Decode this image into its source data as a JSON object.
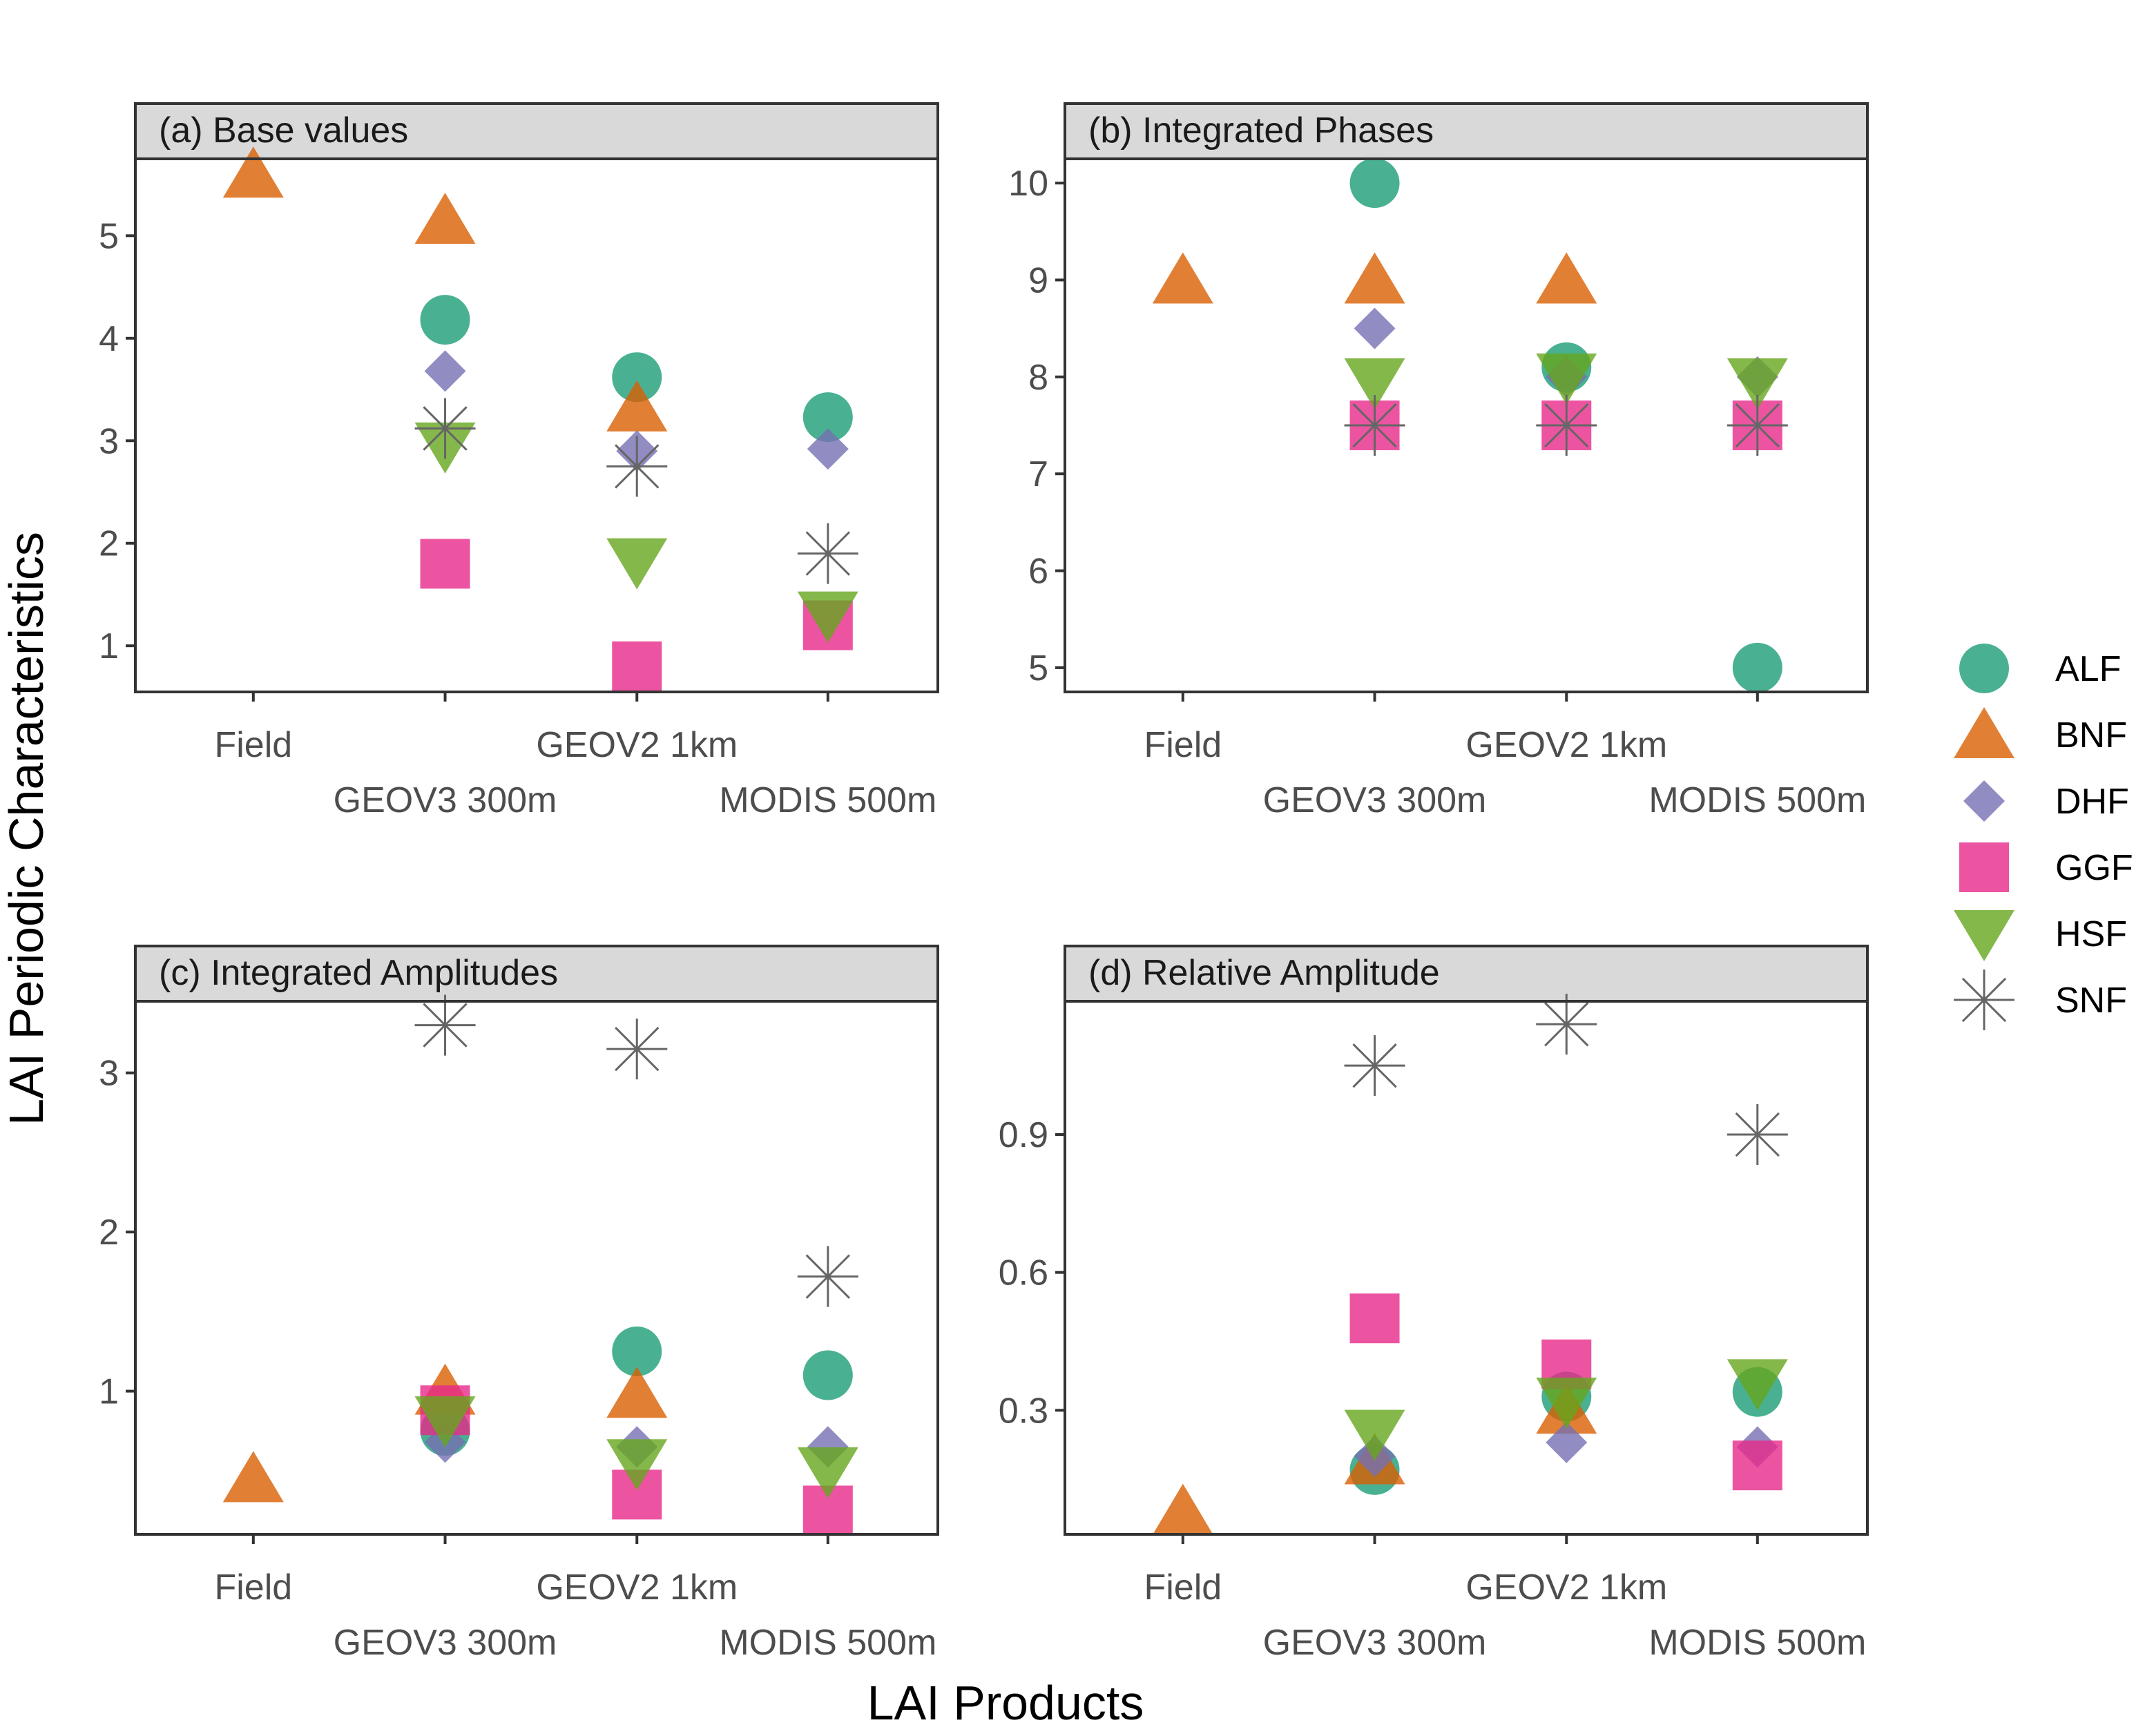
{
  "figure": {
    "ylabel": "LAI Periodic Characteristics",
    "xlabel": "LAI Products"
  },
  "legend": {
    "placement": "right",
    "items": [
      {
        "label": "ALF",
        "shape": "circle",
        "color": "#1b9e77"
      },
      {
        "label": "BNF",
        "shape": "triangle-up",
        "color": "#d95f02"
      },
      {
        "label": "DHF",
        "shape": "diamond",
        "color": "#7570b3"
      },
      {
        "label": "GGF",
        "shape": "square",
        "color": "#e7298a"
      },
      {
        "label": "HSF",
        "shape": "triangle-down",
        "color": "#66a61e"
      },
      {
        "label": "SNF",
        "shape": "asterisk",
        "color": "#666666"
      }
    ]
  },
  "chart_data": [
    {
      "type": "scatter",
      "title": "(a) Base values",
      "categories": [
        "Field",
        "GEOV3 300m",
        "GEOV2 1km",
        "MODIS 500m"
      ],
      "ylim": [
        0.55,
        5.75
      ],
      "yticks": [
        1,
        2,
        3,
        4,
        5
      ],
      "ytick_labels": [
        "1",
        "2",
        "3",
        "4",
        "5"
      ],
      "grid": false,
      "series": [
        {
          "name": "ALF",
          "values": [
            null,
            4.18,
            3.62,
            3.23
          ]
        },
        {
          "name": "BNF",
          "values": [
            5.6,
            5.15,
            3.32,
            null
          ]
        },
        {
          "name": "DHF",
          "values": [
            null,
            3.68,
            2.9,
            2.92
          ]
        },
        {
          "name": "GGF",
          "values": [
            null,
            1.8,
            0.8,
            1.2
          ]
        },
        {
          "name": "HSF",
          "values": [
            null,
            2.95,
            1.82,
            1.3
          ]
        },
        {
          "name": "SNF",
          "values": [
            null,
            3.12,
            2.75,
            1.9
          ]
        }
      ]
    },
    {
      "type": "scatter",
      "title": "(b) Integrated Phases",
      "categories": [
        "Field",
        "GEOV3 300m",
        "GEOV2 1km",
        "MODIS 500m"
      ],
      "ylim": [
        4.75,
        10.25
      ],
      "yticks": [
        5,
        6,
        7,
        8,
        9,
        10
      ],
      "ytick_labels": [
        "5",
        "6",
        "7",
        "8",
        "9",
        "10"
      ],
      "grid": false,
      "series": [
        {
          "name": "ALF",
          "values": [
            null,
            10,
            8.1,
            5
          ]
        },
        {
          "name": "BNF",
          "values": [
            9,
            9,
            9,
            null
          ]
        },
        {
          "name": "DHF",
          "values": [
            null,
            8.5,
            8,
            8
          ]
        },
        {
          "name": "GGF",
          "values": [
            null,
            7.5,
            7.5,
            7.5
          ]
        },
        {
          "name": "HSF",
          "values": [
            null,
            7.95,
            8,
            7.95
          ]
        },
        {
          "name": "SNF",
          "values": [
            null,
            7.5,
            7.5,
            7.5
          ]
        }
      ]
    },
    {
      "type": "scatter",
      "title": "(c) Integrated Amplitudes",
      "categories": [
        "Field",
        "GEOV3 300m",
        "GEOV2 1km",
        "MODIS 500m"
      ],
      "ylim": [
        0.1,
        3.45
      ],
      "yticks": [
        1,
        2,
        3
      ],
      "ytick_labels": [
        "1",
        "2",
        "3"
      ],
      "grid": false,
      "series": [
        {
          "name": "ALF",
          "values": [
            null,
            0.75,
            1.25,
            1.1
          ]
        },
        {
          "name": "BNF",
          "values": [
            0.45,
            1.0,
            0.98,
            null
          ]
        },
        {
          "name": "DHF",
          "values": [
            null,
            0.68,
            0.65,
            0.65
          ]
        },
        {
          "name": "GGF",
          "values": [
            null,
            0.88,
            0.35,
            0.25
          ]
        },
        {
          "name": "HSF",
          "values": [
            null,
            0.82,
            0.55,
            0.5
          ]
        },
        {
          "name": "SNF",
          "values": [
            null,
            3.3,
            3.15,
            1.72
          ]
        }
      ]
    },
    {
      "type": "scatter",
      "title": "(d) Relative Amplitude",
      "categories": [
        "Field",
        "GEOV3 300m",
        "GEOV2 1km",
        "MODIS 500m"
      ],
      "ylim": [
        0.03,
        1.19
      ],
      "yticks": [
        0.3,
        0.6,
        0.9
      ],
      "ytick_labels": [
        "0.3",
        "0.6",
        "0.9"
      ],
      "grid": false,
      "series": [
        {
          "name": "ALF",
          "values": [
            null,
            0.17,
            0.33,
            0.34
          ]
        },
        {
          "name": "BNF",
          "values": [
            0.08,
            0.19,
            0.3,
            null
          ]
        },
        {
          "name": "DHF",
          "values": [
            null,
            0.2,
            0.23,
            0.22
          ]
        },
        {
          "name": "GGF",
          "values": [
            null,
            0.5,
            0.4,
            0.18
          ]
        },
        {
          "name": "HSF",
          "values": [
            null,
            0.25,
            0.32,
            0.36
          ]
        },
        {
          "name": "SNF",
          "values": [
            null,
            1.05,
            1.14,
            0.9
          ]
        }
      ]
    }
  ]
}
